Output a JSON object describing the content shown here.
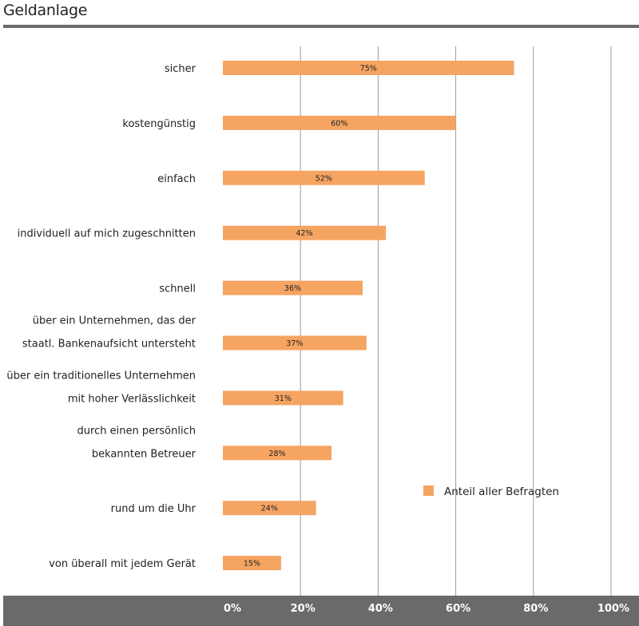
{
  "header": {
    "title": "Geldanlage"
  },
  "chart_data": {
    "type": "bar",
    "orientation": "horizontal",
    "categories": [
      [
        "sicher"
      ],
      [
        "kostengünstig"
      ],
      [
        "einfach"
      ],
      [
        "individuell auf mich zugeschnitten"
      ],
      [
        "schnell"
      ],
      [
        "über ein Unternehmen, das der",
        "staatl. Bankenaufsicht untersteht"
      ],
      [
        "über ein traditionelles Unternehmen",
        "mit hoher Verlässlichkeit"
      ],
      [
        "durch einen persönlich",
        "bekannten Betreuer"
      ],
      [
        "rund um die Uhr"
      ],
      [
        "von überall mit jedem Gerät"
      ]
    ],
    "series": [
      {
        "name": "Anteil aller Befragten",
        "values": [
          75,
          60,
          52,
          42,
          36,
          37,
          31,
          28,
          24,
          15
        ],
        "color": "#f5a462"
      }
    ],
    "data_labels": [
      "75%",
      "60%",
      "52%",
      "42%",
      "36%",
      "37%",
      "31%",
      "28%",
      "24%",
      "15%"
    ],
    "xlim": [
      0,
      100
    ],
    "x_ticks": [
      "0%",
      "20%",
      "40%",
      "60%",
      "80%",
      "100%"
    ],
    "grid": true,
    "legend_position": "bottom-right"
  }
}
